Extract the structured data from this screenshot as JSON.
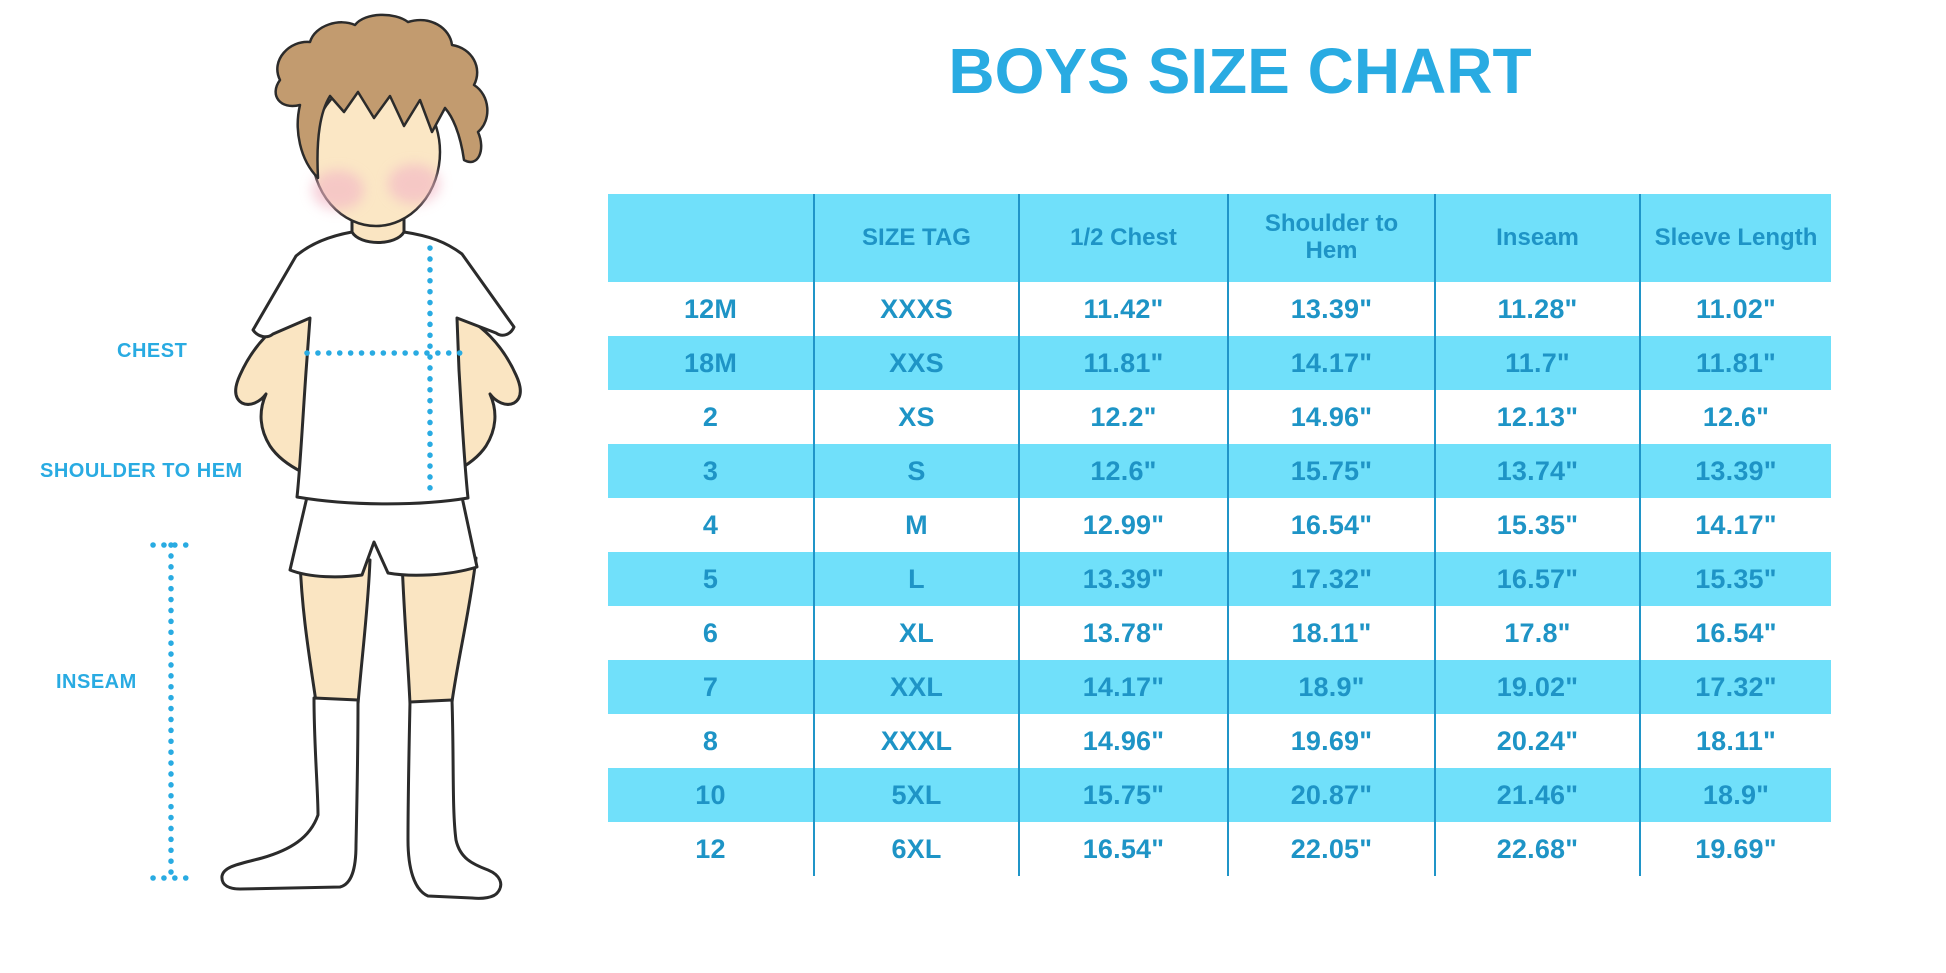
{
  "title": "BOYS SIZE CHART",
  "illustration": {
    "figure": "boy-wearing-tshirt-shorts-and-socks",
    "labels": {
      "chest": "CHEST",
      "shoulder_to_hem": "SHOULDER TO HEM",
      "inseam": "INSEAM"
    }
  },
  "chart_data": {
    "type": "table",
    "title": "BOYS SIZE CHART",
    "columns": [
      "",
      "SIZE TAG",
      "1/2 Chest",
      "Shoulder to Hem",
      "Inseam",
      "Sleeve Length"
    ],
    "rows": [
      [
        "12M",
        "XXXS",
        "11.42\"",
        "13.39\"",
        "11.28\"",
        "11.02\""
      ],
      [
        "18M",
        "XXS",
        "11.81\"",
        "14.17\"",
        "11.7\"",
        "11.81\""
      ],
      [
        "2",
        "XS",
        "12.2\"",
        "14.96\"",
        "12.13\"",
        "12.6\""
      ],
      [
        "3",
        "S",
        "12.6\"",
        "15.75\"",
        "13.74\"",
        "13.39\""
      ],
      [
        "4",
        "M",
        "12.99\"",
        "16.54\"",
        "15.35\"",
        "14.17\""
      ],
      [
        "5",
        "L",
        "13.39\"",
        "17.32\"",
        "16.57\"",
        "15.35\""
      ],
      [
        "6",
        "XL",
        "13.78\"",
        "18.11\"",
        "17.8\"",
        "16.54\""
      ],
      [
        "7",
        "XXL",
        "14.17\"",
        "18.9\"",
        "19.02\"",
        "17.32\""
      ],
      [
        "8",
        "XXXL",
        "14.96\"",
        "19.69\"",
        "20.24\"",
        "18.11\""
      ],
      [
        "10",
        "5XL",
        "15.75\"",
        "20.87\"",
        "21.46\"",
        "18.9\""
      ],
      [
        "12",
        "6XL",
        "16.54\"",
        "22.05\"",
        "22.68\"",
        "19.69\""
      ]
    ],
    "striped_row_indices": [
      1,
      3,
      5,
      7,
      9
    ],
    "units": "inches"
  },
  "colors": {
    "accent": "#29ABE2",
    "table_fill": "#70E0FA",
    "table_text": "#1E94C6",
    "column_line": "#2095C8",
    "outline": "#2B2B2B",
    "skin": "#FAE5C2",
    "hair": "#C29B6F",
    "cheek": "#F3B8C6"
  }
}
